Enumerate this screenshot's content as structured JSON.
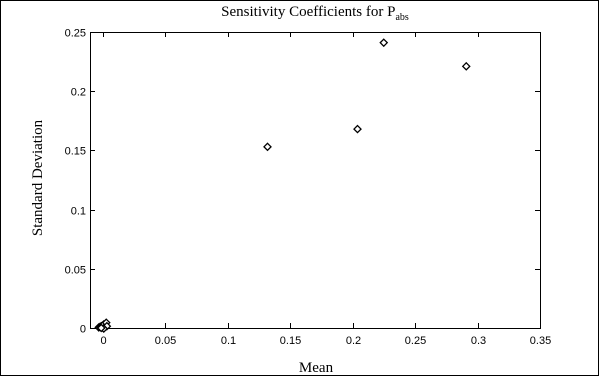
{
  "chart_data": {
    "type": "scatter",
    "title_main": "Sensitivity Coefficients for P",
    "title_subscript": "abs",
    "xlabel": "Mean",
    "ylabel": "Standard Deviation",
    "xlim": [
      -0.01,
      0.35
    ],
    "ylim": [
      0,
      0.25
    ],
    "xticks": [
      0,
      0.05,
      0.1,
      0.15,
      0.2,
      0.25,
      0.3,
      0.35
    ],
    "xtick_labels": [
      "0",
      "0.05",
      "0.1",
      "0.15",
      "0.2",
      "0.25",
      "0.3",
      "0.35"
    ],
    "yticks": [
      0,
      0.05,
      0.1,
      0.15,
      0.2,
      0.25
    ],
    "ytick_labels": [
      "0",
      "0.05",
      "0.1",
      "0.15",
      "0.2",
      "0.25"
    ],
    "marker": "diamond",
    "grid": false,
    "legend": "none",
    "points": [
      {
        "x": -0.003,
        "y": 0.0005
      },
      {
        "x": -0.002,
        "y": 0.001
      },
      {
        "x": -0.001,
        "y": 0.0015
      },
      {
        "x": 0.0,
        "y": 0.002
      },
      {
        "x": 0.0,
        "y": 0.0005
      },
      {
        "x": 0.001,
        "y": 0.003
      },
      {
        "x": 0.002,
        "y": 0.001
      },
      {
        "x": 0.003,
        "y": 0.0045
      },
      {
        "x": 0.0035,
        "y": 0.0015
      },
      {
        "x": 0.001,
        "y": -0.0005
      },
      {
        "x": -0.001,
        "y": 0.0
      },
      {
        "x": 0.132,
        "y": 0.153
      },
      {
        "x": 0.204,
        "y": 0.168
      },
      {
        "x": 0.225,
        "y": 0.241
      },
      {
        "x": 0.291,
        "y": 0.221
      }
    ]
  }
}
